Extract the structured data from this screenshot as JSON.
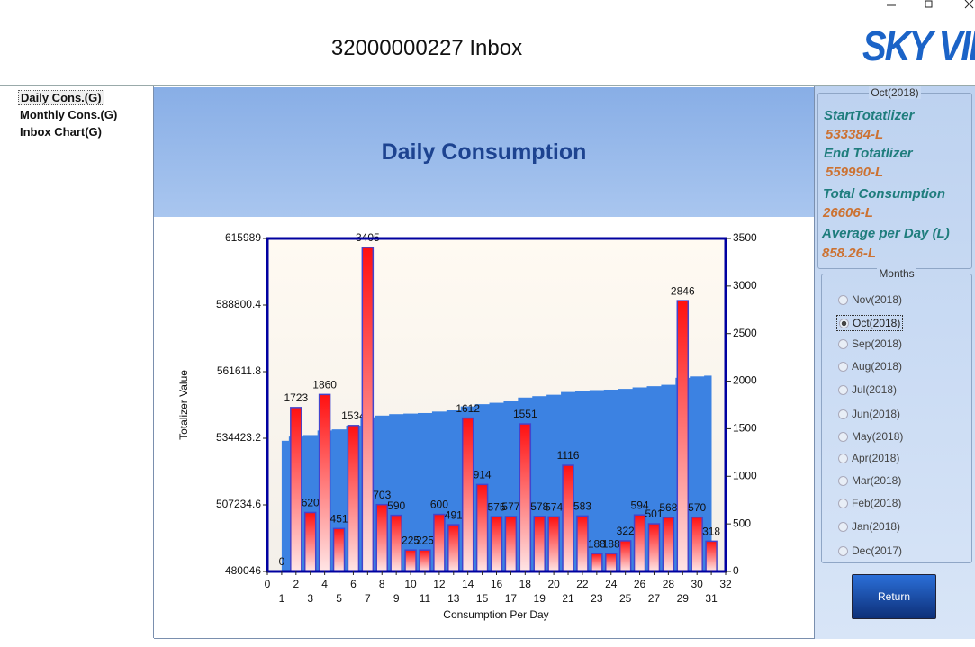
{
  "header": {
    "title": "32000000227 Inbox",
    "logo": "SKY VIEW"
  },
  "nav": {
    "items": [
      "Daily Cons.(G)",
      "Monthly Cons.(G)",
      "Inbox Chart(G)"
    ]
  },
  "chart_data": {
    "type": "bar",
    "title": "Daily Consumption",
    "xlabel": "Consumption Per Day",
    "ylabel": "Totalizer Value",
    "x": [
      1,
      2,
      3,
      4,
      5,
      6,
      7,
      8,
      9,
      10,
      11,
      12,
      13,
      14,
      15,
      16,
      17,
      18,
      19,
      20,
      21,
      22,
      23,
      24,
      25,
      26,
      27,
      28,
      29,
      30,
      31
    ],
    "series": [
      {
        "type": "area",
        "axis": "y",
        "color": "#3c82e2",
        "values": [
          533384,
          535107,
          535727,
          537587,
          538038,
          539572,
          542977,
          543680,
          544270,
          544495,
          544720,
          545320,
          545811,
          547423,
          548337,
          548912,
          549489,
          551040,
          551618,
          552192,
          553308,
          553891,
          554079,
          554267,
          554589,
          555183,
          555684,
          556252,
          559098,
          559668,
          559986
        ]
      },
      {
        "type": "bar",
        "axis": "y2",
        "color": "#ff1010",
        "values": [
          0,
          1723,
          620,
          1860,
          451,
          1534,
          3405,
          703,
          590,
          225,
          225,
          600,
          491,
          1612,
          914,
          575,
          577,
          1551,
          578,
          574,
          1116,
          583,
          188,
          188,
          322,
          594,
          501,
          568,
          2846,
          570,
          318
        ]
      }
    ],
    "xlim": [
      0,
      32
    ],
    "xticks": [
      0,
      1,
      2,
      3,
      4,
      5,
      6,
      7,
      8,
      9,
      10,
      11,
      12,
      13,
      14,
      15,
      16,
      17,
      18,
      19,
      20,
      21,
      22,
      23,
      24,
      25,
      26,
      27,
      28,
      29,
      30,
      31,
      32
    ],
    "ylim": [
      480046,
      615989
    ],
    "yticks": [
      480046,
      507234.6,
      534423.2,
      561611.8,
      588800.4,
      615989
    ],
    "y2lim": [
      0,
      3500
    ],
    "y2ticks": [
      0,
      500,
      1000,
      1500,
      2000,
      2500,
      3000,
      3500
    ]
  },
  "summary": {
    "group": "Oct(2018)",
    "items": [
      {
        "label": "StartTotatlizer",
        "value": "533384-L"
      },
      {
        "label": "End Totatlizer",
        "value": "559990-L"
      },
      {
        "label": "Total Consumption",
        "value": "26606-L"
      },
      {
        "label": "Average per Day (L)",
        "value": "858.26-L"
      }
    ]
  },
  "months": {
    "group": "Months",
    "selected_index": 1,
    "items": [
      "Nov(2018)",
      "Oct(2018)",
      "Sep(2018)",
      "Aug(2018)",
      "Jul(2018)",
      "Jun(2018)",
      "May(2018)",
      "Apr(2018)",
      "Mar(2018)",
      "Feb(2018)",
      "Jan(2018)",
      "Dec(2017)"
    ]
  },
  "return_button": "Return"
}
